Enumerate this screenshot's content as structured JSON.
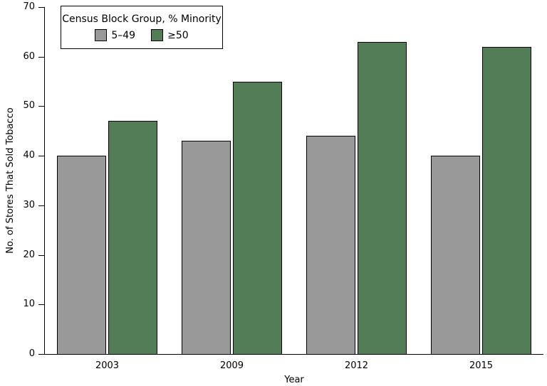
{
  "chart_data": {
    "type": "bar",
    "categories": [
      "2003",
      "2009",
      "2012",
      "2015"
    ],
    "series": [
      {
        "name": "5–49",
        "color": "#999999",
        "values": [
          40,
          43,
          44,
          40
        ]
      },
      {
        "name": "≥50",
        "color": "#537d57",
        "values": [
          47,
          55,
          63,
          62
        ]
      }
    ],
    "title": "",
    "xlabel": "Year",
    "ylabel": "No. of Stores That Sold Tobacco",
    "ylim": [
      0,
      70
    ],
    "yticks": [
      0,
      10,
      20,
      30,
      40,
      50,
      60,
      70
    ],
    "grid": "off",
    "bar_border_color": "#000000",
    "legend": {
      "title": "Census Block Group, % Minority",
      "position": "top-left",
      "entries": [
        "5–49",
        "≥50"
      ]
    }
  }
}
